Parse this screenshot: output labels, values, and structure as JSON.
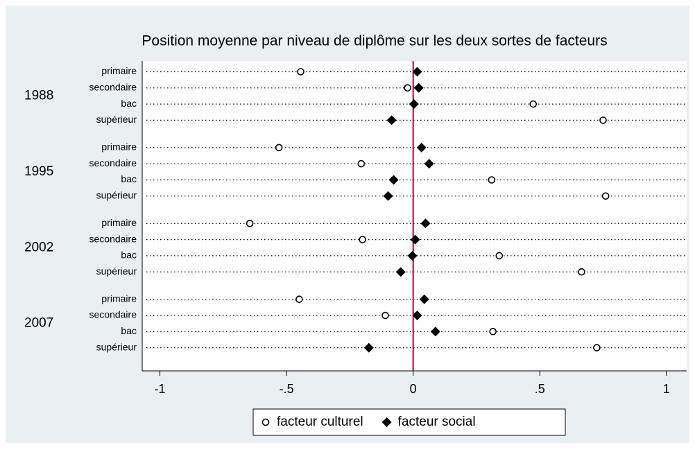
{
  "chart_data": {
    "type": "dot",
    "title": "Position moyenne par niveau de diplôme sur les deux sortes de facteurs",
    "groups": [
      "1988",
      "1995",
      "2002",
      "2007"
    ],
    "categories": [
      "primaire",
      "secondaire",
      "bac",
      "supérieur",
      "primaire",
      "secondaire",
      "bac",
      "supérieur",
      "primaire",
      "secondaire",
      "bac",
      "supérieur",
      "primaire",
      "secondaire",
      "bac",
      "supérieur"
    ],
    "series": [
      {
        "name": "facteur culturel",
        "marker": "circle",
        "color": "#000000",
        "values": [
          -0.444,
          -0.022,
          0.474,
          0.75,
          -0.53,
          -0.205,
          0.31,
          0.76,
          -0.645,
          -0.2,
          0.34,
          0.665,
          -0.45,
          -0.11,
          0.315,
          0.725
        ]
      },
      {
        "name": "facteur social",
        "marker": "diamond",
        "color": "#000000",
        "values": [
          0.016,
          0.022,
          0.003,
          -0.085,
          0.033,
          0.063,
          -0.077,
          -0.099,
          0.049,
          0.008,
          -0.003,
          -0.049,
          0.044,
          0.016,
          0.088,
          -0.175
        ]
      }
    ],
    "xlim": [
      -1.07,
      1.08
    ],
    "xticks": [
      -1,
      {
        "value": -0.5,
        "label": "-.5"
      },
      0,
      {
        "value": 0.5,
        "label": ".5"
      },
      1
    ],
    "reference_line": {
      "x": 0,
      "color": "#c0001e"
    },
    "legend": "bottom"
  }
}
